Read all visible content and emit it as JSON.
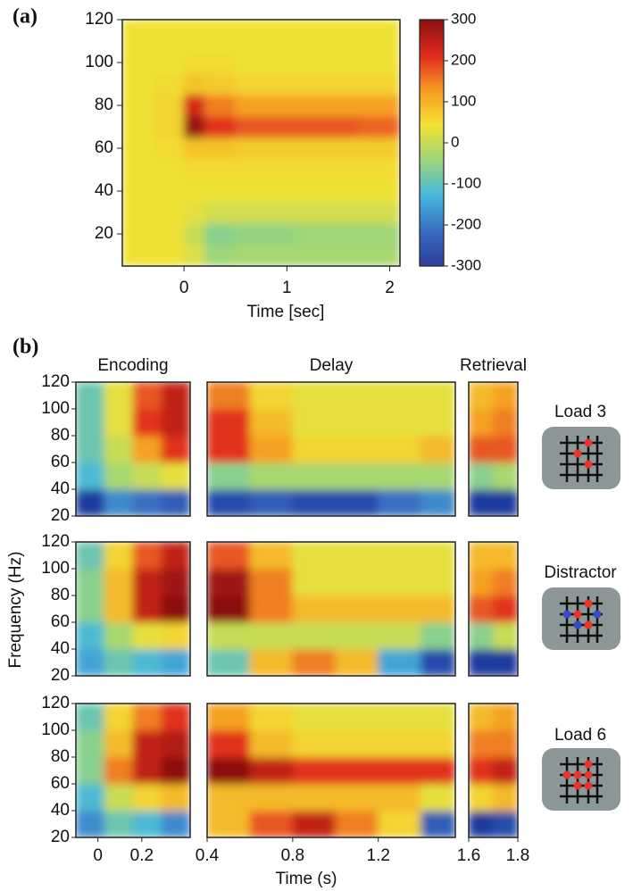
{
  "chart_data": [
    {
      "type": "heatmap",
      "panel_label": "(a)",
      "xlabel": "Time [sec]",
      "xlim": [
        -0.6,
        2.1
      ],
      "ylim": [
        5,
        120
      ],
      "xticks": [
        0,
        1,
        2
      ],
      "yticks": [
        20,
        40,
        60,
        80,
        100,
        120
      ],
      "clim": [
        -300,
        300
      ],
      "cticks": [
        300,
        200,
        100,
        0,
        -100,
        -200,
        -300
      ],
      "colormap": [
        "#2a3f9a",
        "#3a6cc0",
        "#45b7dd",
        "#9bd67a",
        "#f2e234",
        "#f59a22",
        "#e02a1e",
        "#8a1010"
      ],
      "xbins": [
        -0.6,
        -0.3,
        0,
        0.2,
        0.5,
        0.8,
        1.1,
        1.4,
        1.7,
        2.1
      ],
      "ybins": [
        5,
        15,
        25,
        35,
        45,
        55,
        65,
        75,
        85,
        95,
        105,
        120
      ],
      "values": [
        [
          40,
          40,
          20,
          -40,
          -30,
          -30,
          -30,
          -30,
          -30
        ],
        [
          40,
          40,
          0,
          -60,
          -50,
          -50,
          -40,
          -40,
          -40
        ],
        [
          40,
          40,
          30,
          10,
          10,
          10,
          10,
          10,
          10
        ],
        [
          40,
          40,
          40,
          40,
          40,
          40,
          40,
          40,
          40
        ],
        [
          40,
          40,
          50,
          50,
          50,
          50,
          50,
          50,
          50
        ],
        [
          40,
          50,
          80,
          80,
          70,
          70,
          70,
          70,
          70
        ],
        [
          40,
          60,
          290,
          210,
          180,
          180,
          180,
          180,
          170
        ],
        [
          40,
          60,
          230,
          150,
          120,
          120,
          120,
          120,
          120
        ],
        [
          40,
          50,
          80,
          70,
          60,
          60,
          60,
          60,
          60
        ],
        [
          40,
          40,
          50,
          50,
          40,
          40,
          40,
          40,
          40
        ],
        [
          40,
          40,
          40,
          40,
          40,
          40,
          40,
          40,
          40
        ]
      ]
    },
    {
      "type": "heatmap-panels",
      "panel_label": "(b)",
      "xlabel": "Time (s)",
      "ylabel": "Frequency (Hz)",
      "ylim": [
        20,
        120
      ],
      "yticks": [
        20,
        40,
        60,
        80,
        100,
        120
      ],
      "ybins": [
        20,
        40,
        60,
        80,
        100,
        120
      ],
      "clim": [
        -1,
        1
      ],
      "colormap": [
        "#1f3a9e",
        "#3a6cc0",
        "#45b7dd",
        "#9bd67a",
        "#f2e234",
        "#f59a22",
        "#e02a1e",
        "#7a0c0c"
      ],
      "segments": [
        {
          "title": "Encoding",
          "xlim": [
            -0.1,
            0.42
          ],
          "xticks": [
            0,
            0.2
          ],
          "xbins": [
            -0.1,
            0.03,
            0.16,
            0.29,
            0.42
          ]
        },
        {
          "title": "Delay",
          "xlim": [
            0.4,
            1.56
          ],
          "xticks": [
            0.4,
            0.8,
            1.2
          ],
          "xbins": [
            0.4,
            0.6,
            0.8,
            1.0,
            1.2,
            1.4,
            1.56
          ]
        },
        {
          "title": "Retrieval",
          "xlim": [
            1.6,
            1.8
          ],
          "xticks": [
            1.6,
            1.8
          ],
          "xbins": [
            1.6,
            1.7,
            1.8
          ]
        }
      ],
      "conditions": [
        {
          "name": "Load 3",
          "values": [
            [
              [
                -1,
                -0.6,
                -0.7,
                -0.8
              ],
              [
                -0.4,
                -0.1,
                0,
                0.1
              ],
              [
                -0.3,
                0,
                0.4,
                0.7
              ],
              [
                -0.3,
                0.1,
                0.7,
                0.8
              ],
              [
                -0.3,
                0.1,
                0.6,
                0.8
              ]
            ],
            [
              [
                -0.9,
                -0.8,
                -0.9,
                -0.9,
                -0.7,
                -0.6
              ],
              [
                -0.2,
                -0.1,
                -0.1,
                -0.1,
                -0.1,
                -0.1
              ],
              [
                0.7,
                0.4,
                0.2,
                0.2,
                0.2,
                0.3
              ],
              [
                0.7,
                0.3,
                0.1,
                0.1,
                0.1,
                0.1
              ],
              [
                0.5,
                0.2,
                0.1,
                0.1,
                0.1,
                0.1
              ]
            ],
            [
              [
                -1,
                -1
              ],
              [
                -0.2,
                -0.1
              ],
              [
                0.6,
                0.6
              ],
              [
                0.4,
                0.5
              ],
              [
                0.3,
                0.4
              ]
            ]
          ]
        },
        {
          "name": "Distractor",
          "values": [
            [
              [
                -0.5,
                -0.3,
                -0.4,
                -0.5
              ],
              [
                -0.4,
                -0.1,
                0.1,
                0.2
              ],
              [
                -0.2,
                0.3,
                0.8,
                0.95
              ],
              [
                -0.2,
                0.3,
                0.8,
                0.9
              ],
              [
                -0.3,
                0.2,
                0.6,
                0.8
              ]
            ],
            [
              [
                -0.3,
                0.3,
                0.5,
                0.3,
                -0.5,
                -0.9
              ],
              [
                0,
                0,
                0,
                0,
                0,
                -0.2
              ],
              [
                0.95,
                0.5,
                0.3,
                0.3,
                0.3,
                0.3
              ],
              [
                0.9,
                0.5,
                0.1,
                0.1,
                0.1,
                0.1
              ],
              [
                0.6,
                0.3,
                0.1,
                0.1,
                0.1,
                0.1
              ]
            ],
            [
              [
                -1,
                -1
              ],
              [
                -0.2,
                0
              ],
              [
                0.6,
                0.7
              ],
              [
                0.4,
                0.5
              ],
              [
                0.3,
                0.3
              ]
            ]
          ]
        },
        {
          "name": "Load 6",
          "values": [
            [
              [
                -0.6,
                -0.3,
                -0.4,
                -0.6
              ],
              [
                -0.4,
                0,
                0.2,
                0.3
              ],
              [
                -0.2,
                0.5,
                0.8,
                0.95
              ],
              [
                -0.2,
                0.3,
                0.8,
                0.85
              ],
              [
                -0.3,
                0.2,
                0.5,
                0.7
              ]
            ],
            [
              [
                0.3,
                0.6,
                0.8,
                0.5,
                0.2,
                -0.8
              ],
              [
                0.3,
                0.3,
                0.3,
                0.3,
                0.3,
                0.1
              ],
              [
                0.95,
                0.8,
                0.7,
                0.7,
                0.7,
                0.7
              ],
              [
                0.7,
                0.3,
                0.2,
                0.2,
                0.2,
                0.2
              ],
              [
                0.4,
                0.2,
                0.1,
                0.1,
                0.1,
                0.1
              ]
            ],
            [
              [
                -1,
                -0.9
              ],
              [
                0.2,
                0.3
              ],
              [
                0.7,
                0.8
              ],
              [
                0.5,
                0.5
              ],
              [
                0.3,
                0.4
              ]
            ]
          ]
        }
      ]
    }
  ]
}
